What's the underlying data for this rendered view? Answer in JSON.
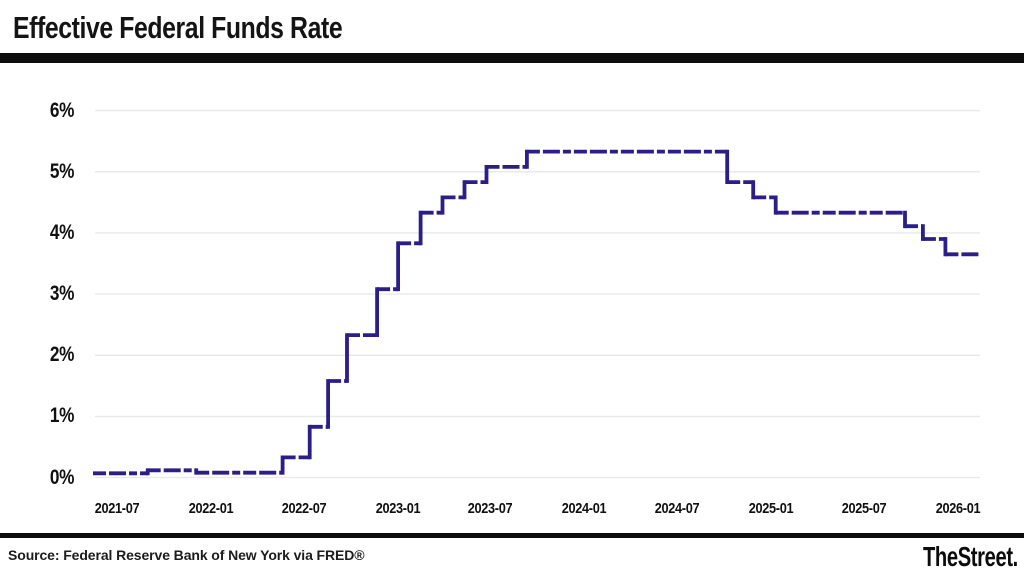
{
  "header": {
    "title": "Effective Federal Funds Rate"
  },
  "footer": {
    "source": "Source: Federal Reserve Bank of New York via FRED®",
    "brand": "TheStreet."
  },
  "chart_data": {
    "type": "line",
    "subtype": "step",
    "title": "Effective Federal Funds Rate",
    "unit": "percent",
    "x_ticks": [
      "2021-07",
      "2022-01",
      "2022-07",
      "2023-01",
      "2023-07",
      "2024-01",
      "2024-07",
      "2025-01",
      "2025-07",
      "2026-01"
    ],
    "y_ticks": [
      "0%",
      "1%",
      "2%",
      "3%",
      "4%",
      "5%",
      "6%"
    ],
    "ylim": [
      0,
      6
    ],
    "grid": "horizontal",
    "gridline_color": "#e9e9e9",
    "line_color": "#2c1e8a",
    "line_style": "dashed",
    "series": [
      {
        "name": "Effective Federal Funds Rate",
        "steps": [
          {
            "date": "2021-05-15",
            "rate": 0.07
          },
          {
            "date": "2021-08-30",
            "rate": 0.12
          },
          {
            "date": "2021-12-03",
            "rate": 0.08
          },
          {
            "date": "2022-05-21",
            "rate": 0.33
          },
          {
            "date": "2022-07-13",
            "rate": 0.83
          },
          {
            "date": "2022-08-18",
            "rate": 1.58
          },
          {
            "date": "2022-09-24",
            "rate": 2.33
          },
          {
            "date": "2022-11-22",
            "rate": 3.08
          },
          {
            "date": "2023-01-02",
            "rate": 3.83
          },
          {
            "date": "2023-02-15",
            "rate": 4.33
          },
          {
            "date": "2023-03-30",
            "rate": 4.58
          },
          {
            "date": "2023-05-12",
            "rate": 4.83
          },
          {
            "date": "2023-06-24",
            "rate": 5.08
          },
          {
            "date": "2023-09-11",
            "rate": 5.33
          },
          {
            "date": "2024-10-07",
            "rate": 4.83
          },
          {
            "date": "2024-11-27",
            "rate": 4.58
          },
          {
            "date": "2025-01-10",
            "rate": 4.33
          },
          {
            "date": "2025-09-20",
            "rate": 4.11
          },
          {
            "date": "2025-10-25",
            "rate": 3.9
          },
          {
            "date": "2025-12-08",
            "rate": 3.65
          }
        ],
        "end_date": "2026-02-13"
      }
    ]
  }
}
